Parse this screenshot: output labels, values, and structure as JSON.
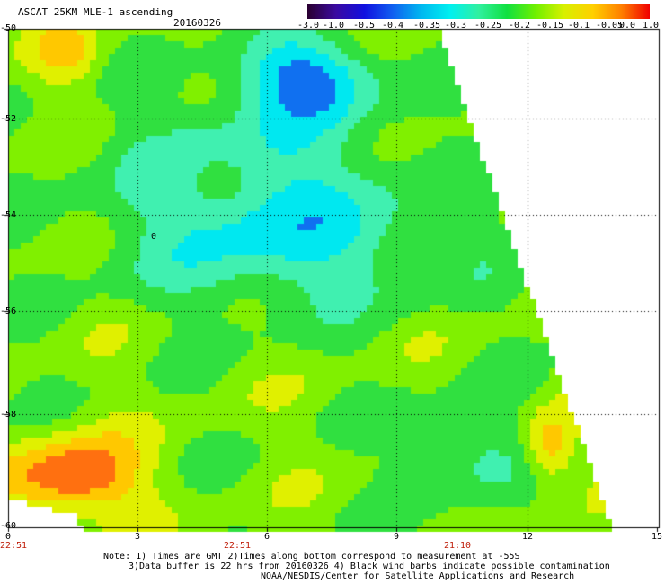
{
  "header": {
    "title": "ASCAT 25KM MLE-1 ascending",
    "date": "20160326"
  },
  "colorbar": {
    "labels": [
      "-3.0",
      "-1.0",
      "-0.5",
      "-0.4",
      "-0.35",
      "-0.3",
      "-0.25",
      "-0.2",
      "-0.15",
      "-0.1",
      "-0.05",
      "0.0",
      "1.0"
    ],
    "colors": [
      "#2a0030",
      "#3b0aa0",
      "#1010e0",
      "#1060f0",
      "#00b8f0",
      "#00f0f0",
      "#30f0a0",
      "#10e040",
      "#70f000",
      "#d8f000",
      "#ffd000",
      "#ff8000",
      "#f00000"
    ]
  },
  "map": {
    "y_labels": [
      "-50",
      "-52",
      "-54",
      "-56",
      "-58",
      "-60"
    ],
    "x_labels": [
      "0",
      "3",
      "6",
      "9",
      "12",
      "15"
    ],
    "time_labels": [
      "22:51",
      "22:51",
      "21:10"
    ],
    "marker": "0"
  },
  "notes": {
    "line1": "Note: 1) Times are GMT 2)Times along bottom correspond to measurement at -55S",
    "line2": "3)Data buffer is 22 hrs from 20160326 4) Black wind barbs indicate possible contamination",
    "line3": "NOAA/NESDIS/Center for Satellite Applications and Research"
  }
}
